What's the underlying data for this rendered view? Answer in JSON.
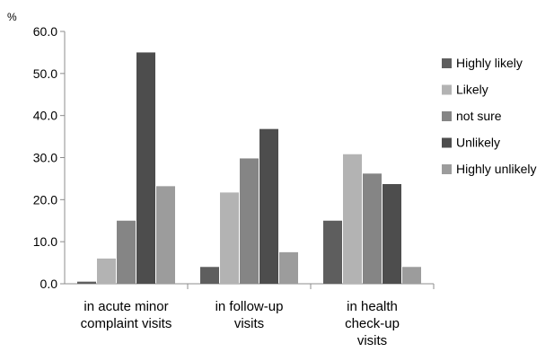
{
  "chart_data": {
    "type": "bar",
    "ylabel": "%",
    "ylim": [
      0,
      60
    ],
    "yticks": [
      "0.0",
      "10.0",
      "20.0",
      "30.0",
      "40.0",
      "50.0",
      "60.0"
    ],
    "grid": false,
    "legend_position": "right",
    "categories": [
      [
        "in acute minor",
        "complaint visits"
      ],
      [
        "in follow-up",
        "visits"
      ],
      [
        "in health",
        "check-up",
        "visits"
      ]
    ],
    "series": [
      {
        "name": "Highly likely",
        "color": "#5e5e5e",
        "values": [
          0.5,
          4.0,
          15.0
        ]
      },
      {
        "name": "Likely",
        "color": "#b3b3b3",
        "values": [
          6.0,
          21.7,
          30.8
        ]
      },
      {
        "name": "not sure",
        "color": "#858585",
        "values": [
          15.0,
          29.8,
          26.2
        ]
      },
      {
        "name": "Unlikely",
        "color": "#4d4d4d",
        "values": [
          55.0,
          36.8,
          23.7
        ]
      },
      {
        "name": "Highly unlikely",
        "color": "#9c9c9c",
        "values": [
          23.2,
          7.5,
          4.0
        ]
      }
    ]
  }
}
